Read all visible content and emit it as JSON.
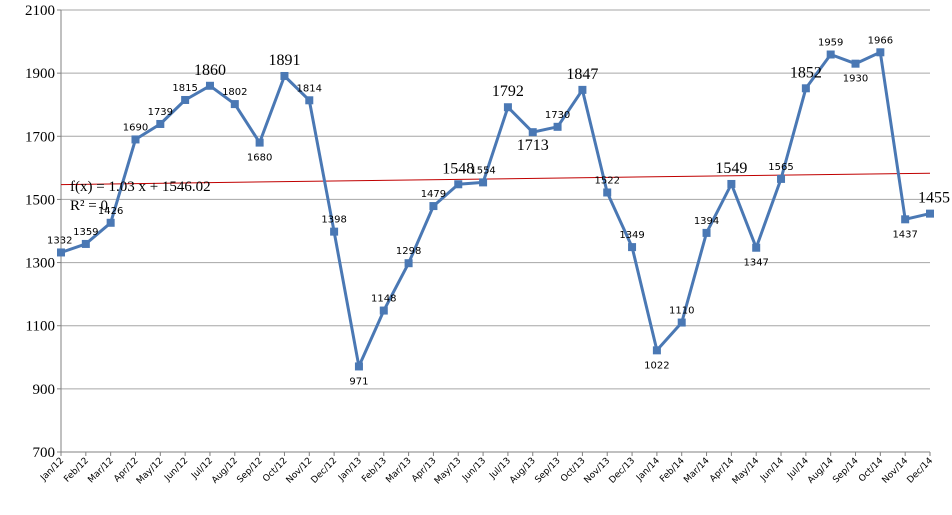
{
  "chart_data": {
    "type": "line",
    "title": "",
    "xlabel": "",
    "ylabel": "",
    "ylim": [
      700,
      2100
    ],
    "yticks": [
      700,
      900,
      1100,
      1300,
      1500,
      1700,
      1900,
      2100
    ],
    "grid": true,
    "categories": [
      "Jan/12",
      "Feb/12",
      "Mar/12",
      "Apr/12",
      "May/12",
      "Jun/12",
      "Jul/12",
      "Aug/12",
      "Sep/12",
      "Oct/12",
      "Nov/12",
      "Dec/12",
      "Jan/13",
      "Feb/13",
      "Mar/13",
      "Apr/13",
      "May/13",
      "Jun/13",
      "Jul/13",
      "Aug/13",
      "Sep/13",
      "Oct/13",
      "Nov/13",
      "Dec/13",
      "Jan/14",
      "Feb/14",
      "Mar/14",
      "Apr/14",
      "May/14",
      "Jun/14",
      "Jul/14",
      "Aug/14",
      "Sep/14",
      "Oct/14",
      "Nov/14",
      "Dec/14"
    ],
    "series": [
      {
        "color": "#4a78b4",
        "values": [
          1332,
          1359,
          1426,
          1690,
          1739,
          1815,
          1860,
          1802,
          1680,
          1891,
          1814,
          1398,
          971,
          1148,
          1298,
          1479,
          1548,
          1554,
          1792,
          1713,
          1730,
          1847,
          1522,
          1349,
          1022,
          1110,
          1394,
          1549,
          1347,
          1565,
          1852,
          1959,
          1930,
          1966,
          1437,
          1455
        ]
      }
    ],
    "trendline": {
      "type": "linear",
      "slope": 1.03,
      "intercept": 1546.02,
      "color": "#c00000",
      "equation_text": "f(x) = 1.03 x + 1546.02",
      "r2_text": "R² = 0"
    },
    "large_labels": [
      6,
      9,
      16,
      18,
      19,
      21,
      27,
      30,
      35
    ]
  }
}
